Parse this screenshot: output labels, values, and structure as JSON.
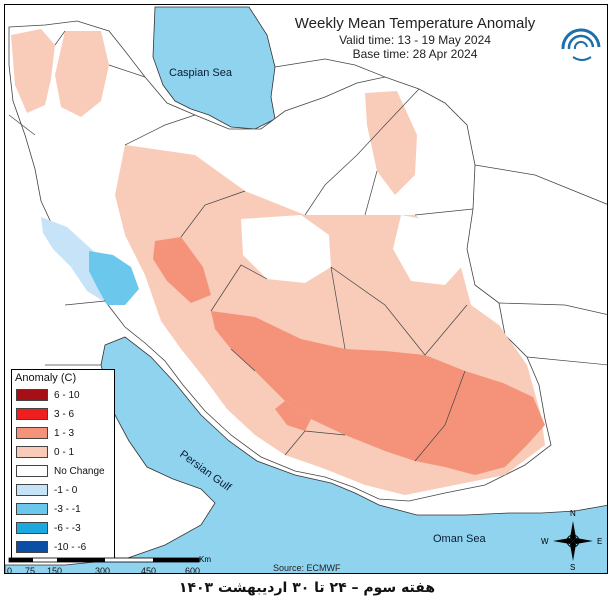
{
  "title": "Weekly Mean Temperature Anomaly",
  "valid_time": "Valid time: 13 - 19 May 2024",
  "base_time": "Base time: 28 Apr 2024",
  "water_labels": {
    "caspian": "Caspian Sea",
    "gulf": "Persian Gulf",
    "oman": "Oman Sea"
  },
  "legend": {
    "title": "Anomaly (C)",
    "items": [
      {
        "label": "6 - 10",
        "color": "#a50f15"
      },
      {
        "label": "3 - 6",
        "color": "#ef1f1f"
      },
      {
        "label": "1 - 3",
        "color": "#f4937a"
      },
      {
        "label": "0 - 1",
        "color": "#f9cbb9"
      },
      {
        "label": "No Change",
        "color": "#ffffff"
      },
      {
        "label": "-1 - 0",
        "color": "#c6e3f7"
      },
      {
        "label": "-3 - -1",
        "color": "#6cc7ec"
      },
      {
        "label": "-6 - -3",
        "color": "#1ea8e0"
      },
      {
        "label": "-10 - -6",
        "color": "#0a4ea6"
      }
    ]
  },
  "scale_bar": {
    "ticks": [
      "0",
      "75",
      "150",
      "300",
      "450",
      "600"
    ],
    "unit": "Km"
  },
  "source": "Source: ECMWF",
  "compass": {
    "n": "N",
    "s": "S",
    "e": "E",
    "w": "W"
  },
  "caption": "هفته سوم – ۲۴ تا ۳۰ اردیبهشت ۱۴۰۳",
  "colors": {
    "sea": "#8fd3ee",
    "land_none": "#ffffff",
    "warm_light": "#f9cbb9",
    "warm_mid": "#f4937a",
    "cool_light": "#c6e3f7",
    "cool_mid": "#6cc7ec"
  }
}
